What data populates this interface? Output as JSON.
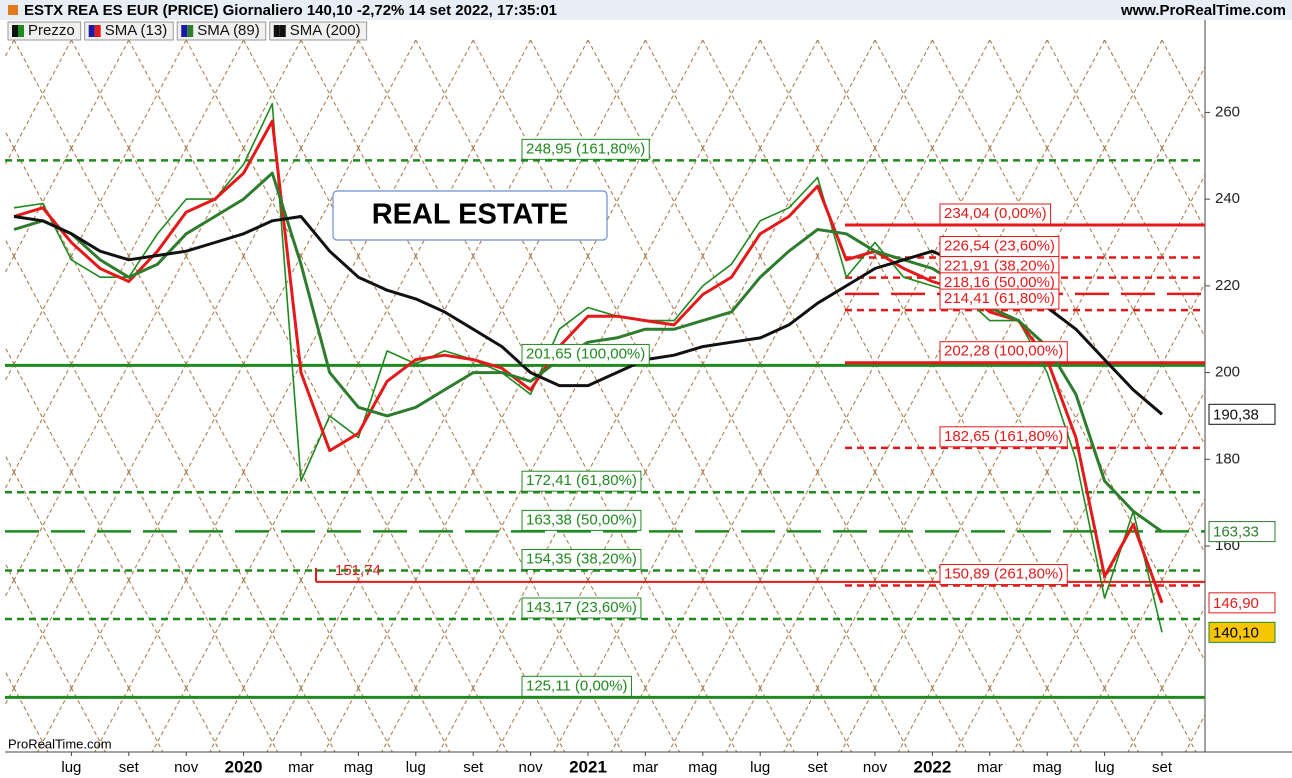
{
  "chart_data": {
    "type": "line",
    "title": "ESTX REA ES EUR (PRICE) Giornaliero 140,10 -2,72% 14 set 2022, 17:35:01",
    "source": "www.ProRealTime.com",
    "watermark": "ProRealTime.com",
    "annotation": "REAL ESTATE",
    "categories": [
      null,
      null,
      "lug",
      null,
      "set",
      null,
      "nov",
      null,
      "2020",
      null,
      "mar",
      null,
      "mag",
      null,
      "lug",
      null,
      "set",
      null,
      "nov",
      null,
      "2021",
      null,
      "mar",
      null,
      "mag",
      null,
      "lug",
      null,
      "set",
      null,
      "nov",
      null,
      "2022",
      null,
      "mar",
      null,
      "mag",
      null,
      "lug",
      null,
      "set",
      null
    ],
    "ylim": [
      112.5,
      276.7
    ],
    "yticks": [
      160,
      180,
      200,
      220,
      240,
      260
    ],
    "series": [
      {
        "name": "Prezzo",
        "color": "#1f8a1f",
        "label_fill": "#f7c600",
        "end_label": "140,10",
        "values": [
          238,
          239,
          226,
          222,
          222,
          232,
          240,
          240,
          248,
          262,
          175,
          190,
          185,
          205,
          202,
          205,
          203,
          200,
          195,
          210,
          215,
          213,
          212,
          212,
          220,
          225,
          235,
          238,
          245,
          222,
          230,
          222,
          220,
          218,
          212,
          212,
          200,
          180,
          148,
          168,
          140.1,
          null
        ]
      },
      {
        "name": "SMA (13)",
        "color": "#e41a1a",
        "label_fill": "#ffffff",
        "end_label": "146,90",
        "values": [
          236,
          238,
          230,
          224,
          221,
          228,
          237,
          240,
          246,
          258,
          200,
          182,
          186,
          198,
          203,
          204,
          203,
          201,
          196,
          206,
          213,
          213,
          212,
          211,
          218,
          222,
          232,
          236,
          243,
          226,
          228,
          224,
          221,
          219,
          214,
          212,
          203,
          185,
          153,
          165,
          146.9,
          null
        ]
      },
      {
        "name": "SMA (89)",
        "color": "#2e7d2e",
        "label_fill": "#ffffff",
        "end_label": "163,33",
        "values": [
          233,
          235,
          232,
          226,
          222,
          225,
          232,
          236,
          240,
          246,
          225,
          200,
          192,
          190,
          192,
          196,
          200,
          200,
          198,
          203,
          207,
          208,
          210,
          210,
          212,
          214,
          222,
          228,
          233,
          232,
          228,
          226,
          224,
          220,
          215,
          212,
          206,
          195,
          175,
          168,
          163.33,
          null
        ]
      },
      {
        "name": "SMA (200)",
        "color": "#111111",
        "label_fill": "#ffffff",
        "end_label": "190,38",
        "values": [
          236,
          235,
          232,
          228,
          226,
          227,
          228,
          230,
          232,
          235,
          236,
          228,
          222,
          219,
          217,
          214,
          210,
          206,
          200,
          197,
          197,
          200,
          203,
          204,
          206,
          207,
          208,
          211,
          216,
          220,
          224,
          226,
          228,
          225,
          223,
          220,
          215,
          210,
          203,
          196,
          190.38,
          null
        ]
      }
    ],
    "levels": [
      {
        "color": "#1f8a1f",
        "items": [
          {
            "value": 248.95,
            "label": "248,95 (161,80%)",
            "style": "dashed"
          },
          {
            "value": 201.65,
            "label": "201,65 (100,00%)",
            "style": "solid"
          },
          {
            "value": 172.41,
            "label": "172,41 (61,80%)",
            "style": "dashed"
          },
          {
            "value": 163.38,
            "label": "163,38 (50,00%)",
            "style": "long-dashed"
          },
          {
            "value": 154.35,
            "label": "154,35 (38,20%)",
            "style": "dashed"
          },
          {
            "value": 143.17,
            "label": "143,17 (23,60%)",
            "style": "dashed"
          },
          {
            "value": 125.11,
            "label": "125,11 (0,00%)",
            "style": "solid"
          }
        ]
      },
      {
        "color": "#e41a1a",
        "items": [
          {
            "value": 234.04,
            "label": "234,04 (0,00%)",
            "style": "solid"
          },
          {
            "value": 226.54,
            "label": "226,54 (23,60%)",
            "style": "dashed"
          },
          {
            "value": 221.91,
            "label": "221,91 (38,20%)",
            "style": "dashed"
          },
          {
            "value": 218.16,
            "label": "218,16 (50,00%)",
            "style": "long-dashed"
          },
          {
            "value": 214.41,
            "label": "214,41 (61,80%)",
            "style": "dashed"
          },
          {
            "value": 202.28,
            "label": "202,28 (100,00%)",
            "style": "solid"
          },
          {
            "value": 182.65,
            "label": "182,65 (161,80%)",
            "style": "dashed"
          },
          {
            "value": 150.89,
            "label": "150,89 (261,80%)",
            "style": "dashed"
          }
        ]
      }
    ],
    "low": {
      "value": 151.74,
      "label": "151,74",
      "color": "#e41a1a"
    }
  }
}
